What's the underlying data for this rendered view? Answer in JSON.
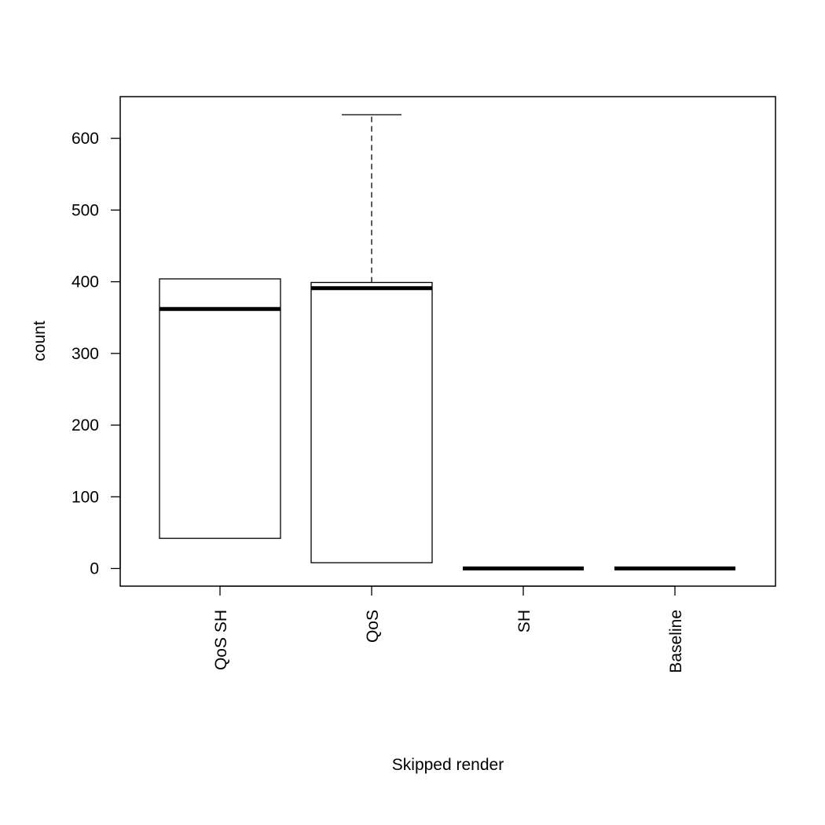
{
  "chart_data": {
    "type": "boxplot",
    "xlabel": "Skipped render",
    "ylabel": "count",
    "ylim": [
      -25,
      660
    ],
    "yticks": [
      0,
      100,
      200,
      300,
      400,
      500,
      600
    ],
    "categories": [
      "QoS SH",
      "QoS",
      "SH",
      "Baseline"
    ],
    "boxes": [
      {
        "name": "QoS SH",
        "whisker_low": 42,
        "q1": 42,
        "median": 362,
        "q3": 404,
        "whisker_high": 404
      },
      {
        "name": "QoS",
        "whisker_low": 8,
        "q1": 8,
        "median": 391,
        "q3": 399,
        "whisker_high": 633
      },
      {
        "name": "SH",
        "whisker_low": 0,
        "q1": 0,
        "median": 0,
        "q3": 0,
        "whisker_high": 0
      },
      {
        "name": "Baseline",
        "whisker_low": 0,
        "q1": 0,
        "median": 0,
        "q3": 0,
        "whisker_high": 0
      }
    ],
    "grid": false,
    "colors": {
      "line": "#000000",
      "fill": "#ffffff"
    }
  }
}
